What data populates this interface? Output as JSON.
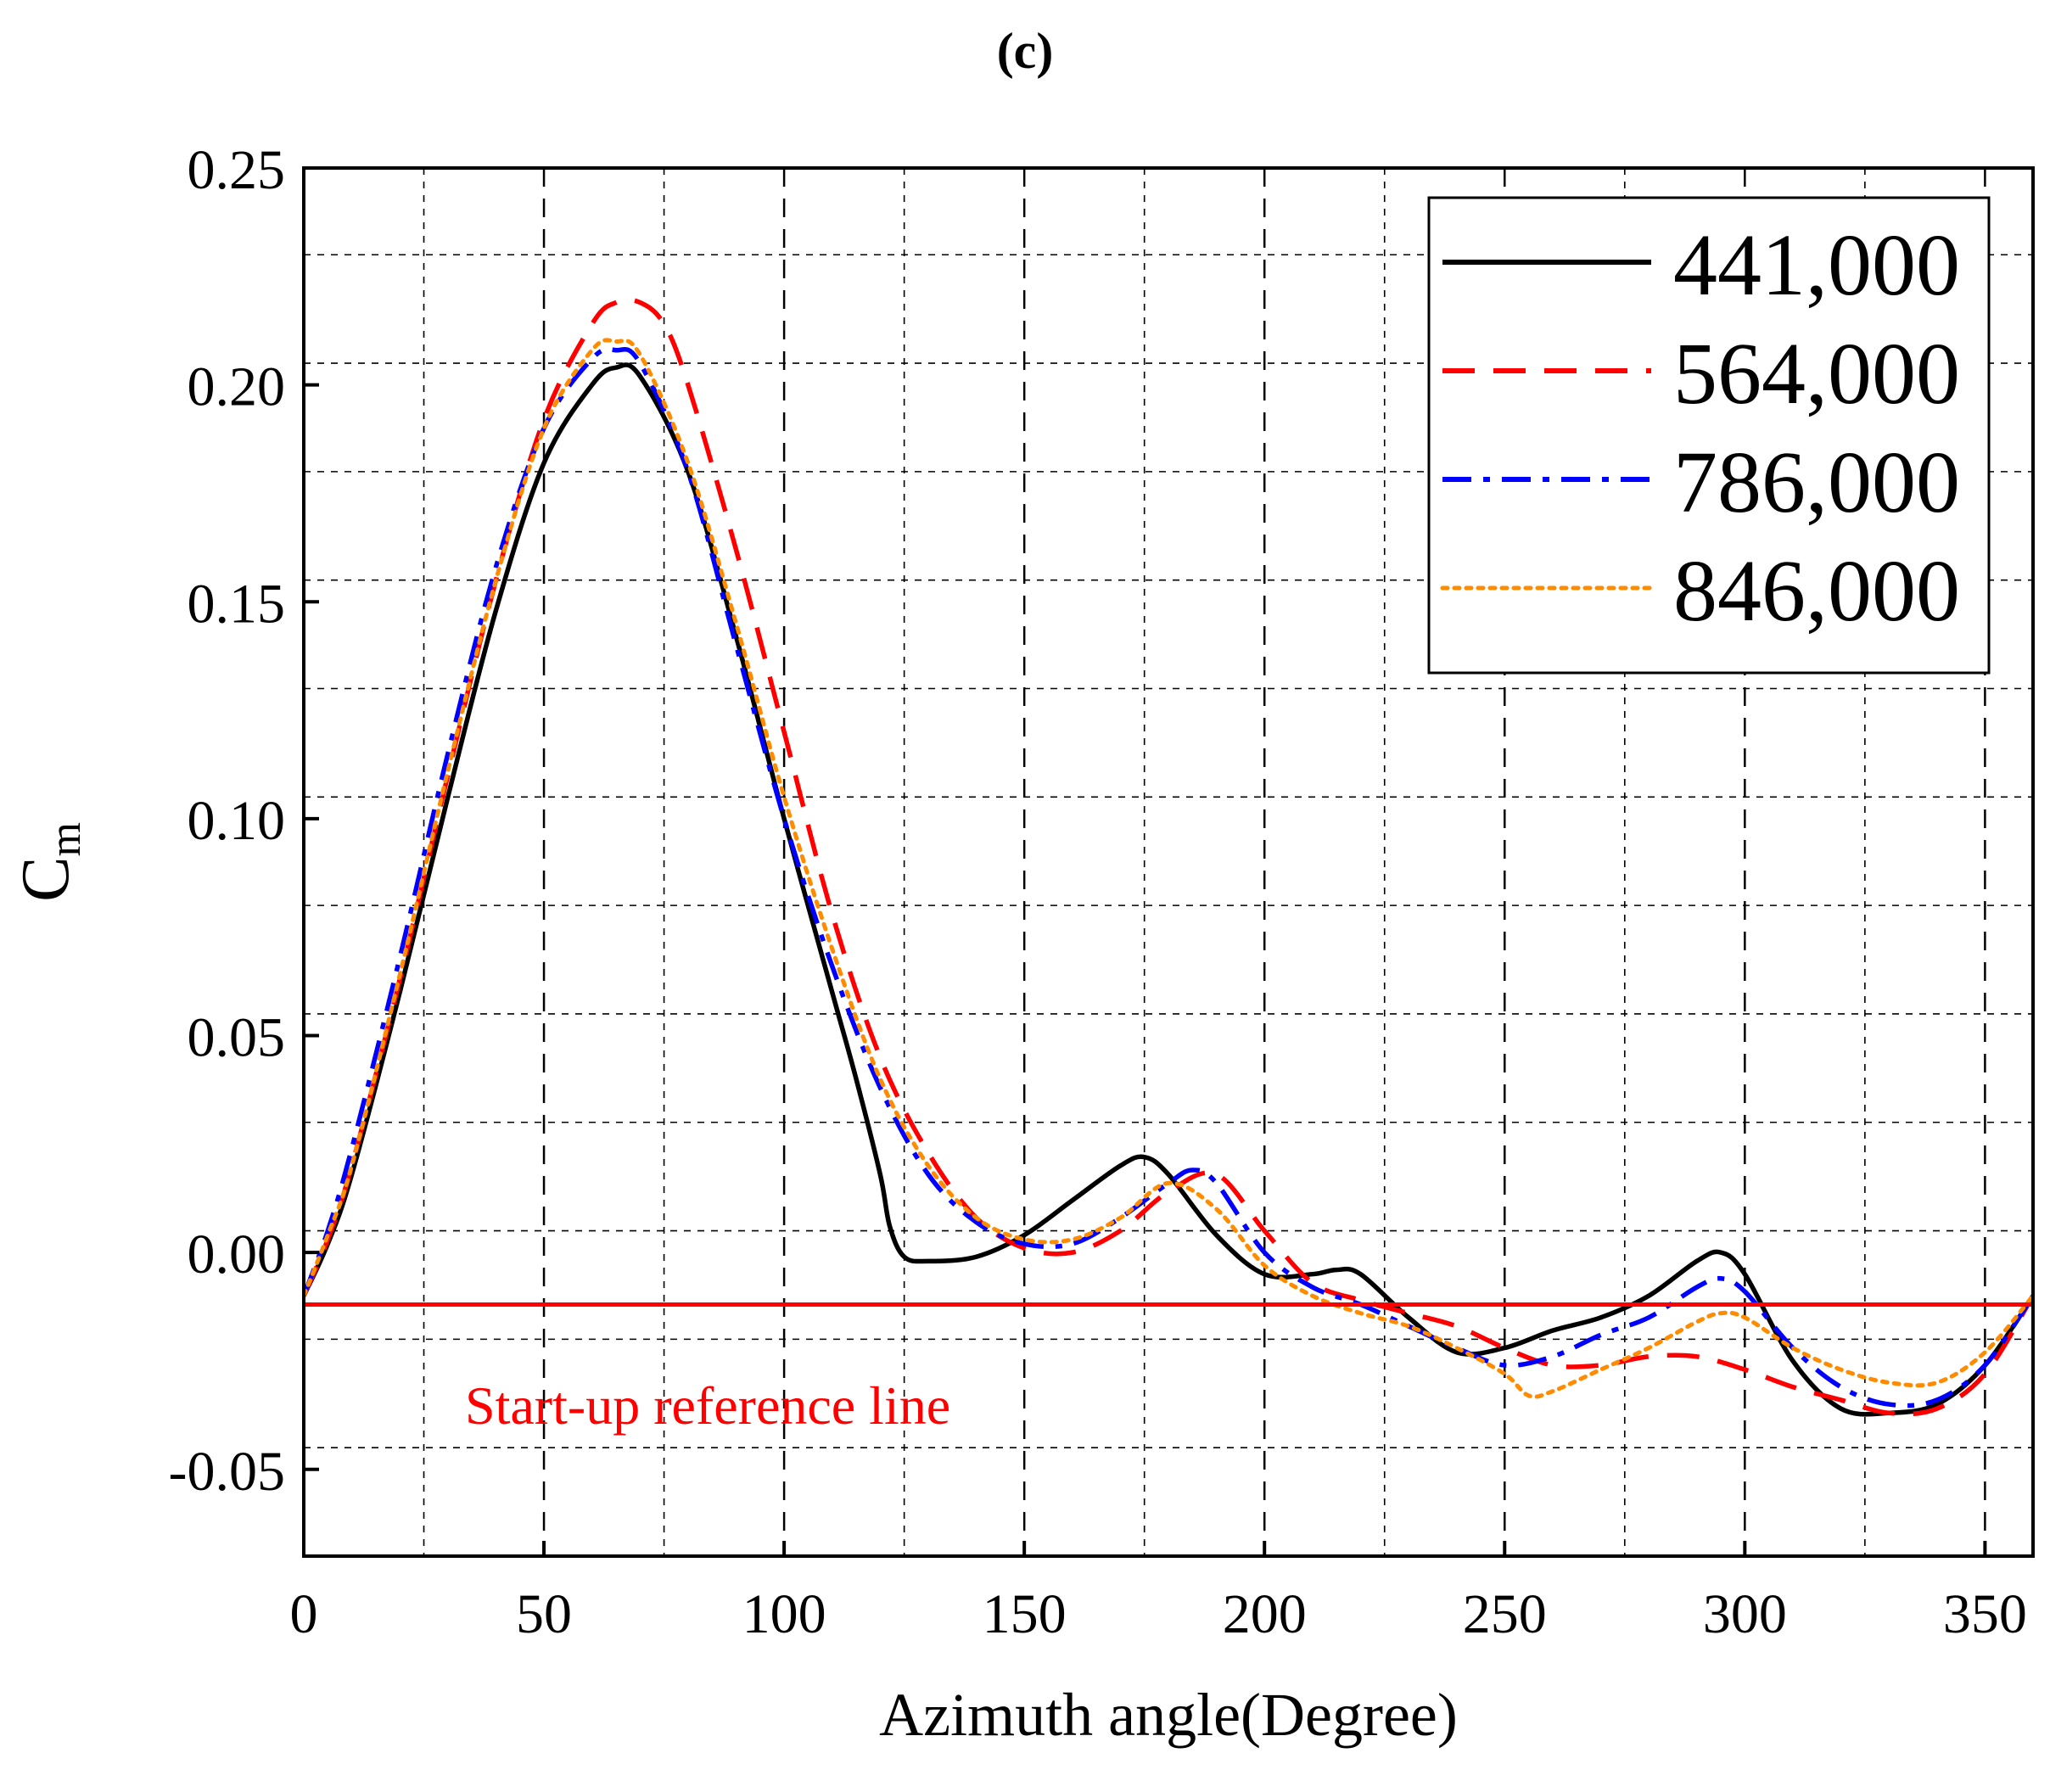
{
  "panel_label": "(c)",
  "chart_data": {
    "type": "line",
    "xlabel": "Azimuth angle(Degree)",
    "ylabel": "C",
    "ylabel_sub": "m",
    "xlim": [
      0,
      360
    ],
    "ylim": [
      -0.07,
      0.25
    ],
    "xticks": [
      0,
      50,
      100,
      150,
      200,
      250,
      300,
      350
    ],
    "xtick_labels": [
      "0",
      "50",
      "100",
      "150",
      "200",
      "250",
      "300",
      "350"
    ],
    "yticks": [
      -0.05,
      0.0,
      0.05,
      0.1,
      0.15,
      0.2,
      0.25
    ],
    "ytick_labels": [
      "-0.05",
      "0.00",
      "0.05",
      "0.10",
      "0.15",
      "0.20",
      "0.25"
    ],
    "grid": true,
    "legend_position": "top-right",
    "reference_line": {
      "y": -0.012,
      "label": "Start-up reference line",
      "color": "#ff0000"
    },
    "series": [
      {
        "name": "441,000",
        "color": "#000000",
        "dash": "solid",
        "x": [
          0,
          5,
          10,
          20,
          30,
          40,
          50,
          60,
          65,
          70,
          80,
          90,
          100,
          110,
          115,
          120,
          122,
          125,
          130,
          140,
          150,
          160,
          170,
          175,
          180,
          190,
          200,
          210,
          215,
          220,
          230,
          240,
          250,
          260,
          270,
          280,
          290,
          295,
          300,
          310,
          320,
          330,
          340,
          350,
          360
        ],
        "y": [
          -0.01,
          0.002,
          0.018,
          0.06,
          0.105,
          0.148,
          0.182,
          0.2,
          0.204,
          0.202,
          0.18,
          0.142,
          0.1,
          0.06,
          0.04,
          0.018,
          0.006,
          -0.001,
          -0.002,
          -0.001,
          0.004,
          0.012,
          0.02,
          0.022,
          0.018,
          0.004,
          -0.005,
          -0.005,
          -0.004,
          -0.005,
          -0.015,
          -0.023,
          -0.022,
          -0.018,
          -0.015,
          -0.01,
          -0.002,
          0.0,
          -0.005,
          -0.025,
          -0.036,
          -0.037,
          -0.035,
          -0.026,
          -0.01
        ]
      },
      {
        "name": "564,000",
        "color": "#ff0000",
        "dash": "dashed",
        "x": [
          0,
          5,
          10,
          20,
          30,
          40,
          50,
          60,
          65,
          70,
          75,
          80,
          90,
          100,
          110,
          120,
          130,
          140,
          150,
          160,
          170,
          180,
          190,
          200,
          210,
          220,
          230,
          240,
          250,
          260,
          270,
          280,
          290,
          300,
          310,
          320,
          330,
          340,
          350,
          360
        ],
        "y": [
          -0.01,
          0.003,
          0.02,
          0.063,
          0.11,
          0.155,
          0.192,
          0.214,
          0.219,
          0.219,
          0.214,
          0.2,
          0.162,
          0.12,
          0.078,
          0.045,
          0.023,
          0.008,
          0.001,
          0.0,
          0.005,
          0.014,
          0.018,
          0.005,
          -0.007,
          -0.011,
          -0.014,
          -0.017,
          -0.022,
          -0.026,
          -0.026,
          -0.024,
          -0.024,
          -0.027,
          -0.031,
          -0.034,
          -0.037,
          -0.036,
          -0.028,
          -0.01
        ]
      },
      {
        "name": "786,000",
        "color": "#0000ff",
        "dash": "dashdot",
        "x": [
          0,
          5,
          10,
          20,
          30,
          40,
          50,
          60,
          65,
          70,
          80,
          90,
          100,
          110,
          120,
          130,
          140,
          150,
          160,
          170,
          180,
          185,
          190,
          200,
          210,
          220,
          230,
          240,
          250,
          260,
          270,
          280,
          290,
          295,
          300,
          310,
          320,
          330,
          340,
          350,
          360
        ],
        "y": [
          -0.01,
          0.005,
          0.024,
          0.068,
          0.115,
          0.158,
          0.19,
          0.206,
          0.208,
          0.205,
          0.18,
          0.14,
          0.1,
          0.066,
          0.038,
          0.018,
          0.007,
          0.002,
          0.002,
          0.008,
          0.016,
          0.019,
          0.016,
          0.0,
          -0.008,
          -0.012,
          -0.017,
          -0.022,
          -0.026,
          -0.024,
          -0.019,
          -0.015,
          -0.008,
          -0.006,
          -0.009,
          -0.022,
          -0.031,
          -0.035,
          -0.034,
          -0.026,
          -0.01
        ]
      },
      {
        "name": "846,000",
        "color": "#ff8c00",
        "dash": "dotted",
        "x": [
          0,
          5,
          10,
          20,
          30,
          40,
          50,
          60,
          65,
          70,
          80,
          90,
          100,
          110,
          120,
          130,
          140,
          150,
          160,
          170,
          180,
          190,
          200,
          210,
          220,
          230,
          240,
          250,
          255,
          260,
          270,
          280,
          290,
          295,
          300,
          310,
          320,
          330,
          340,
          350,
          360
        ],
        "y": [
          -0.01,
          0.004,
          0.02,
          0.064,
          0.111,
          0.155,
          0.19,
          0.208,
          0.21,
          0.207,
          0.182,
          0.145,
          0.105,
          0.07,
          0.04,
          0.02,
          0.008,
          0.003,
          0.003,
          0.008,
          0.016,
          0.01,
          -0.003,
          -0.01,
          -0.014,
          -0.017,
          -0.022,
          -0.028,
          -0.033,
          -0.032,
          -0.027,
          -0.022,
          -0.016,
          -0.014,
          -0.015,
          -0.022,
          -0.027,
          -0.03,
          -0.03,
          -0.023,
          -0.01
        ]
      }
    ]
  }
}
